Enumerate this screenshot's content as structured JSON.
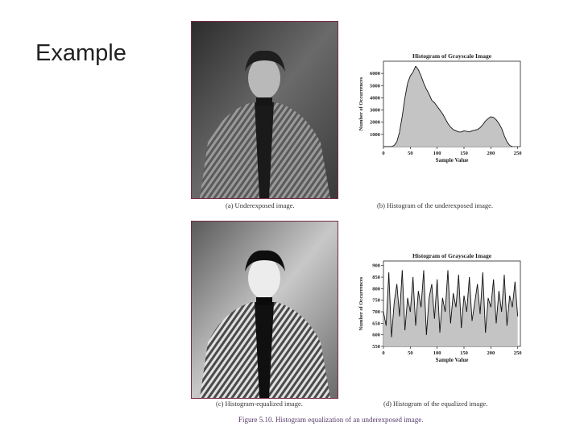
{
  "slide": {
    "title": "Example"
  },
  "figure": {
    "caption": "Figure 5.10. Histogram equalization of an underexposed image.",
    "subcaptions": {
      "a": "(a) Underexposed image.",
      "b": "(b) Histogram of the underexposed image.",
      "c": "(c) Histogram-equalized image.",
      "d": "(d) Histogram of the equalized image."
    }
  },
  "chart_data": [
    {
      "type": "area",
      "title": "Histogram of Grayscale Image",
      "xlabel": "Sample Value",
      "ylabel": "Number of Occurrences",
      "xlim": [
        0,
        255
      ],
      "ylim": [
        0,
        7000
      ],
      "x_ticks": [
        0,
        50,
        100,
        150,
        200,
        250
      ],
      "y_ticks": [
        1000,
        2000,
        3000,
        4000,
        5000,
        6000
      ],
      "x": [
        0,
        5,
        10,
        15,
        20,
        25,
        30,
        35,
        40,
        45,
        50,
        55,
        60,
        65,
        70,
        75,
        80,
        85,
        90,
        95,
        100,
        105,
        110,
        115,
        120,
        125,
        130,
        135,
        140,
        145,
        150,
        155,
        160,
        165,
        170,
        175,
        180,
        185,
        190,
        195,
        200,
        205,
        210,
        215,
        220,
        225,
        230,
        235,
        240
      ],
      "values": [
        0,
        0,
        0,
        0,
        100,
        400,
        1200,
        2500,
        4000,
        5200,
        5800,
        6100,
        6600,
        6300,
        5800,
        5200,
        4700,
        4300,
        3800,
        3600,
        3300,
        3000,
        2700,
        2300,
        1900,
        1600,
        1400,
        1300,
        1200,
        1200,
        1300,
        1250,
        1200,
        1300,
        1350,
        1400,
        1550,
        1800,
        2100,
        2300,
        2450,
        2400,
        2200,
        1900,
        1500,
        900,
        400,
        100,
        0
      ]
    },
    {
      "type": "area",
      "title": "Histogram of Grayscale Image",
      "xlabel": "Sample Value",
      "ylabel": "Number of Occurrences",
      "xlim": [
        0,
        255
      ],
      "ylim": [
        550,
        920
      ],
      "x_ticks": [
        0,
        50,
        100,
        150,
        200,
        250
      ],
      "y_ticks": [
        550,
        600,
        650,
        700,
        750,
        800,
        850,
        900
      ],
      "x": [
        0,
        5,
        10,
        15,
        20,
        25,
        30,
        35,
        40,
        45,
        50,
        55,
        60,
        65,
        70,
        75,
        80,
        85,
        90,
        95,
        100,
        105,
        110,
        115,
        120,
        125,
        130,
        135,
        140,
        145,
        150,
        155,
        160,
        165,
        170,
        175,
        180,
        185,
        190,
        195,
        200,
        205,
        210,
        215,
        220,
        225,
        230,
        235,
        240,
        245,
        250
      ],
      "values": [
        700,
        640,
        870,
        590,
        740,
        820,
        680,
        880,
        620,
        760,
        700,
        850,
        640,
        790,
        720,
        880,
        600,
        760,
        820,
        670,
        840,
        610,
        760,
        700,
        880,
        650,
        780,
        720,
        860,
        630,
        770,
        700,
        850,
        660,
        740,
        820,
        690,
        870,
        610,
        760,
        720,
        840,
        650,
        790,
        700,
        860,
        640,
        770,
        720,
        830,
        680
      ]
    }
  ]
}
